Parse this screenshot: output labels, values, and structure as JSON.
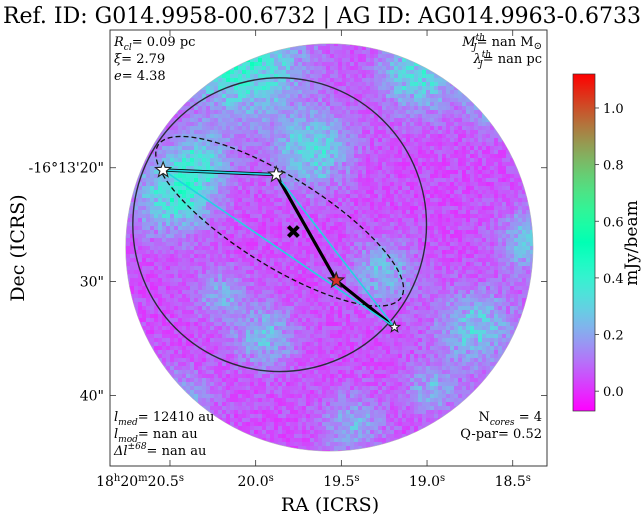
{
  "title": "Ref. ID: G014.9958-00.6732 | AG ID: AG014.9963-0.6733",
  "axes": {
    "xlabel": "RA (ICRS)",
    "ylabel": "Dec (ICRS)",
    "x_ticks": [
      {
        "label_main": "18",
        "label_sup1": "h",
        "label_mid": "20",
        "label_sup2": "m",
        "label_end": "20.5",
        "label_sup3": "s"
      },
      {
        "label_main": "20.0",
        "label_sup1": "s"
      },
      {
        "label_main": "19.5",
        "label_sup1": "s"
      },
      {
        "label_main": "19.0",
        "label_sup1": "s"
      },
      {
        "label_main": "18.5",
        "label_sup1": "s"
      }
    ],
    "y_ticks": [
      "-16°13'20\"",
      "30\"",
      "40\""
    ]
  },
  "colorbar": {
    "label": "mJy/beam",
    "ticks": [
      "1.0",
      "0.8",
      "0.6",
      "0.4",
      "0.2",
      "0.0"
    ],
    "tick_values": [
      1.0,
      0.8,
      0.6,
      0.4,
      0.2,
      0.0
    ],
    "vmin": -0.07,
    "vmax": 1.12,
    "colormap": "rainbow"
  },
  "annotations": {
    "top_left": [
      {
        "sym": "R",
        "sub": "cl",
        "sup": "",
        "val": "= 0.09 pc"
      },
      {
        "sym": "ξ",
        "sub": "",
        "sup": "",
        "val": "= 2.79"
      },
      {
        "sym": "e",
        "sub": "",
        "sup": "",
        "val": "= 4.38"
      }
    ],
    "top_right": [
      {
        "sym": "M",
        "sub": "J",
        "sup": "th",
        "val": "= nan M",
        "extra": "⊙"
      },
      {
        "sym": "λ",
        "sub": "J",
        "sup": "th",
        "val": "= nan pc",
        "extra": ""
      }
    ],
    "bottom_left": [
      {
        "sym": "l",
        "sub": "med",
        "sup": "",
        "val": "= 12410 au"
      },
      {
        "sym": "l",
        "sub": "mod",
        "sup": "",
        "val": "= nan au"
      },
      {
        "sym": "Δl",
        "sub": "",
        "sup": "±68",
        "val": "= nan au"
      }
    ],
    "bottom_right": [
      {
        "text_a": "N",
        "sub": "cores",
        "text_b": " = 4"
      },
      {
        "text_a": "Q-par",
        "sub": "",
        "text_b": "= 0.52"
      }
    ]
  },
  "chart_data": {
    "type": "scatter",
    "title": "Ref. ID: G014.9958-00.6732 | AG ID: AG014.9963-0.6733",
    "xlabel": "RA (ICRS)",
    "ylabel": "Dec (ICRS)",
    "x_units": "RA seconds (18h20m + s)",
    "y_units": "Dec arcsec offset from -16°13'00\" (negative = south)",
    "xlim": [
      20.85,
      18.3
    ],
    "ylim": [
      -46.2,
      -7.9
    ],
    "cores": [
      {
        "ra_s": 20.54,
        "dec_s": -20.2,
        "marker": "star",
        "color": "white",
        "size": "large"
      },
      {
        "ra_s": 19.88,
        "dec_s": -20.6,
        "marker": "star",
        "color": "white",
        "size": "large"
      },
      {
        "ra_s": 19.53,
        "dec_s": -29.9,
        "marker": "star",
        "color": "#d73027",
        "size": "large"
      },
      {
        "ra_s": 19.19,
        "dec_s": -34.0,
        "marker": "star",
        "color": "white",
        "size": "small"
      }
    ],
    "centroid": {
      "ra_s": 19.78,
      "dec_s": -25.6,
      "marker": "x"
    },
    "mst_edges": [
      [
        0,
        1
      ],
      [
        1,
        2
      ],
      [
        2,
        3
      ]
    ],
    "hull_edges": [
      [
        0,
        1
      ],
      [
        1,
        3
      ],
      [
        3,
        0
      ]
    ],
    "circle": {
      "ra_s": 19.86,
      "dec_s": -25.0,
      "radius_arcsec": 12.9
    },
    "ellipse": {
      "ra_s": 19.86,
      "dec_s": -24.7,
      "semimajor_arcsec": 12.6,
      "semiminor_arcsec": 3.9,
      "angle_deg": -32
    },
    "field_radius_arcsec": 17.9,
    "field_center": {
      "ra_s": 19.57,
      "dec_s": -27.0
    }
  }
}
